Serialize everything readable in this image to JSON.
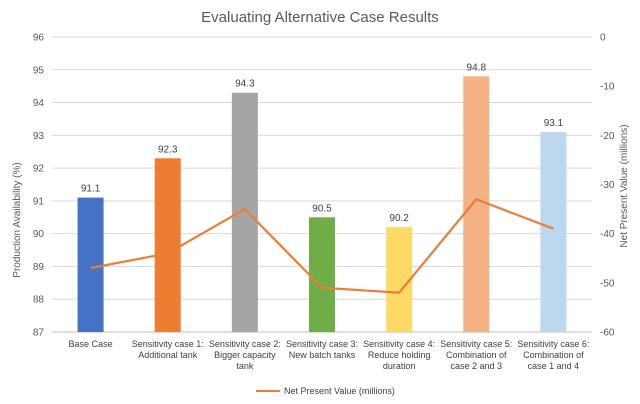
{
  "chart_data": {
    "type": "bar+line",
    "title": "Evaluating Alternative Case Results",
    "categories": [
      [
        "Base Case"
      ],
      [
        "Sensitivity case 1:",
        "Additional tank"
      ],
      [
        "Sensitivity case 2:",
        "Bigger capacity",
        "tank"
      ],
      [
        "Sensitivity case 3:",
        "New batch tanks"
      ],
      [
        "Sensitivity case 4:",
        "Reduce holding",
        "duration"
      ],
      [
        "Sensitivity case 5:",
        "Combination of",
        "case 2 and 3"
      ],
      [
        "Sensitivity case 6:",
        "Combination of",
        "case 1 and 4"
      ]
    ],
    "bar_series": {
      "name": "Production Availability (%)",
      "values": [
        91.1,
        92.3,
        94.3,
        90.5,
        90.2,
        94.8,
        93.1
      ],
      "labels": [
        "91.1",
        "92.3",
        "94.3",
        "90.5",
        "90.2",
        "94.8",
        "93.1"
      ],
      "colors": [
        "#4472C4",
        "#ED7D31",
        "#A5A5A5",
        "#70AD47",
        "#FFD966",
        "#F4B183",
        "#BDD7EE"
      ]
    },
    "line_series": {
      "name": "Net Present Value (millions)",
      "values": [
        -47,
        -44,
        -35,
        -51,
        -52,
        -33,
        -39
      ],
      "color": "#ED7D31"
    },
    "ylabel": "Production Availability (%)",
    "y2label": "Net Present Value (millions)",
    "ylim": [
      87,
      96
    ],
    "y_ticks": [
      "87",
      "88",
      "89",
      "90",
      "91",
      "92",
      "93",
      "94",
      "95",
      "96"
    ],
    "y2lim": [
      -60,
      0
    ],
    "y2_ticks": [
      "0",
      "-10",
      "-20",
      "-30",
      "-40",
      "-50",
      "-60"
    ],
    "legend": "Net Present Value (millions)",
    "legend_position": "bottom",
    "grid": true
  }
}
